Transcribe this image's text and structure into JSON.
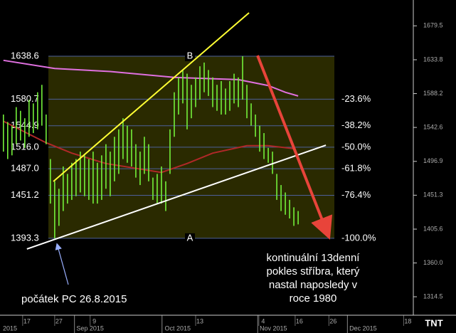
{
  "chart_data": {
    "type": "ohlc",
    "bar_color": "#74f03a",
    "xlim": [
      -0.8,
      95.8
    ],
    "ylim": [
      1292.5,
      1714.3
    ],
    "yticks": [
      {
        "value": 1314.5,
        "label": "1314.5"
      },
      {
        "value": 1360,
        "label": "1360.0"
      },
      1405.6,
      1451.3,
      1496.9,
      1542.6,
      1588.2,
      1633.8,
      1679.5
    ],
    "high": [
      1560,
      1550,
      1545,
      1570,
      1565,
      1555,
      1580,
      1575,
      1590,
      1600,
      1560,
      1500,
      1470,
      1460,
      1490,
      1480,
      1495,
      1500,
      1510,
      1505,
      1500,
      1510,
      1495,
      1505,
      1520,
      1510,
      1530,
      1540,
      1555,
      1545,
      1540,
      1520,
      1510,
      1530,
      1520,
      1475,
      1480,
      1490,
      1470,
      1540,
      1590,
      1610,
      1620,
      1615,
      1600,
      1610,
      1625,
      1630,
      1620,
      1610,
      1600,
      1605,
      1595,
      1605,
      1615,
      1610,
      1638.6,
      1600,
      1575,
      1560,
      1545,
      1535,
      1515,
      1510,
      1480,
      1465,
      1455,
      1445,
      1435,
      1430
    ],
    "low": [
      1510,
      1500,
      1505,
      1520,
      1525,
      1515,
      1530,
      1535,
      1540,
      1545,
      1520,
      1440,
      1393.3,
      1410,
      1430,
      1440,
      1445,
      1450,
      1455,
      1450,
      1445,
      1440,
      1440,
      1445,
      1460,
      1450,
      1470,
      1480,
      1500,
      1495,
      1490,
      1475,
      1465,
      1480,
      1470,
      1445,
      1440,
      1440,
      1430,
      1480,
      1530,
      1560,
      1575,
      1540,
      1555,
      1570,
      1580,
      1590,
      1585,
      1570,
      1565,
      1560,
      1560,
      1565,
      1575,
      1570,
      1580,
      1555,
      1545,
      1530,
      1510,
      1500,
      1495,
      1480,
      1445,
      1430,
      1425,
      1420,
      1410,
      1412
    ],
    "lines": [
      {
        "color": "#e070e0",
        "x": [
          0,
          12,
          25,
          40,
          55,
          62,
          66,
          69
        ],
        "values": [
          1633,
          1622,
          1618,
          1610,
          1607,
          1599,
          1590,
          1585
        ]
      },
      {
        "color": "#b02828",
        "x": [
          0,
          10,
          16,
          24,
          37,
          43,
          49,
          57,
          62,
          68
        ],
        "values": [
          1551,
          1522,
          1508,
          1494,
          1482,
          1494,
          1508,
          1518,
          1518,
          1514
        ]
      }
    ],
    "trendlines": [
      {
        "color": "#ffff33",
        "x": [
          11.7,
          57.5
        ],
        "values": [
          1469.9,
          1697
        ]
      },
      {
        "color": "#ffffff",
        "x": [
          5.5,
          75.5
        ],
        "values": [
          1378.8,
          1518.7
        ]
      }
    ],
    "fib_levels": [
      {
        "value": 1638.6,
        "label": "1638.6"
      },
      {
        "value": 1580.7,
        "label": "1580.7",
        "ratio_label": "-23.6%"
      },
      {
        "value": 1544.9,
        "label": "1544.9",
        "ratio_label": "-38.2%"
      },
      {
        "value": 1516,
        "label": "1516.0",
        "ratio_label": "-50.0%"
      },
      {
        "value": 1487,
        "label": "1487.0",
        "ratio_label": "-61.8%"
      },
      {
        "value": 1451.2,
        "label": "1451.2",
        "ratio_label": "-76.4%"
      },
      {
        "value": 1393.3,
        "label": "1393.3",
        "ratio_label": "-100.0%"
      }
    ],
    "fib_points": [
      "B",
      "A"
    ],
    "xticks": [
      {
        "value": 5.5,
        "label": "17"
      },
      {
        "value": 13,
        "label": "27"
      },
      {
        "value": 21.3,
        "label": "9"
      },
      {
        "value": 46,
        "label": "13"
      },
      {
        "value": 60.8,
        "label": "4"
      },
      {
        "value": 69.3,
        "label": "16"
      },
      {
        "value": 77.2,
        "label": "26"
      },
      {
        "value": 94.7,
        "label": "18"
      }
    ],
    "month_ticks": [
      {
        "value": 0,
        "label": "2015"
      },
      {
        "value": 20.3,
        "label": "Sep 2015"
      },
      {
        "value": 40.8,
        "label": "Oct 2015"
      },
      {
        "value": 63.2,
        "label": "Nov 2015"
      },
      {
        "value": 84.2,
        "label": "Dec 2015"
      }
    ],
    "annotation_right": [
      "kontinuální 13denní",
      "pokles stříbra, který",
      "nastal naposledy v",
      "roce 1980"
    ],
    "annotation_left": "počátek PC 26.8.2015",
    "logo": "TNT"
  }
}
